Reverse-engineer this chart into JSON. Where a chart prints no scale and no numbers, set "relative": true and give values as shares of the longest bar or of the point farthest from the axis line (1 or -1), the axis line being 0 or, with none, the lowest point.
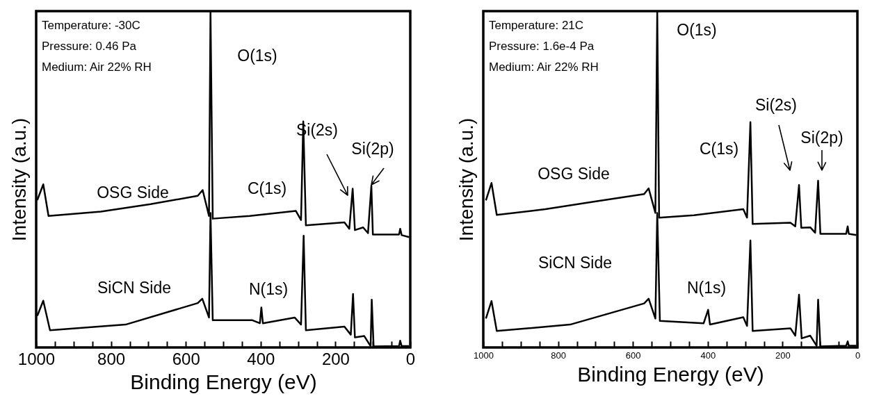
{
  "chart_data": [
    {
      "type": "line",
      "relative": true,
      "xlabel": "Binding Energy (eV)",
      "ylabel": "Intensity (a.u.)",
      "xlim": [
        1000,
        0
      ],
      "xticks": [
        1000,
        {
          "value": 950,
          "label": null
        },
        {
          "value": 900,
          "label": null
        },
        {
          "value": 850,
          "label": null
        },
        800,
        {
          "value": 750,
          "label": null
        },
        {
          "value": 700,
          "label": null
        },
        {
          "value": 650,
          "label": null
        },
        600,
        {
          "value": 550,
          "label": null
        },
        {
          "value": 500,
          "label": null
        },
        {
          "value": 450,
          "label": null
        },
        400,
        {
          "value": 350,
          "label": null
        },
        {
          "value": 300,
          "label": null
        },
        {
          "value": 250,
          "label": null
        },
        200,
        {
          "value": 150,
          "label": null
        },
        {
          "value": 100,
          "label": null
        },
        {
          "value": 50,
          "label": null
        },
        0
      ],
      "annotations": [
        "Temperature: -30C",
        "Pressure: 0.46 Pa",
        "Medium: Air 22% RH",
        "O(1s)",
        "C(1s)",
        "Si(2s)",
        "Si(2p)",
        "N(1s)"
      ],
      "series": [
        {
          "name": "OSG Side",
          "color": "#000000",
          "x": [
            997,
            981,
            967,
            827,
            694,
            568,
            555,
            538,
            534,
            528,
            429,
            306,
            292,
            286,
            279,
            176,
            163,
            154,
            148,
            126,
            113,
            104,
            100,
            30,
            27,
            23,
            3
          ],
          "values": [
            0.438,
            0.485,
            0.391,
            0.404,
            0.426,
            0.451,
            0.468,
            0.391,
            1.0,
            0.383,
            0.391,
            0.406,
            0.379,
            0.672,
            0.363,
            0.372,
            0.353,
            0.472,
            0.349,
            0.357,
            0.34,
            0.481,
            0.336,
            0.336,
            0.353,
            0.334,
            0.328
          ]
        },
        {
          "name": "SiCN Side",
          "color": "#000000",
          "x": [
            997,
            981,
            963,
            761,
            568,
            556,
            538,
            534,
            528,
            422,
            402,
            398,
            394,
            309,
            292,
            285,
            279,
            176,
            159,
            153,
            148,
            123,
            106,
            103,
            98,
            30,
            27,
            23,
            3
          ],
          "values": [
            0.094,
            0.139,
            0.051,
            0.068,
            0.132,
            0.145,
            0.089,
            0.4,
            0.081,
            0.081,
            0.072,
            0.119,
            0.072,
            0.089,
            0.068,
            0.332,
            0.051,
            0.062,
            0.038,
            0.159,
            0.03,
            0.034,
            0.004,
            0.142,
            0.003,
            0.004,
            0.02,
            0.004,
            0.004
          ]
        }
      ]
    },
    {
      "type": "line",
      "relative": true,
      "xlabel": "Binding Energy (eV)",
      "ylabel": "Intensity (a.u.)",
      "xlim": [
        1000,
        0
      ],
      "xticks": [
        1000,
        {
          "value": 950,
          "label": null
        },
        {
          "value": 900,
          "label": null
        },
        {
          "value": 850,
          "label": null
        },
        800,
        {
          "value": 750,
          "label": null
        },
        {
          "value": 700,
          "label": null
        },
        {
          "value": 650,
          "label": null
        },
        600,
        {
          "value": 550,
          "label": null
        },
        {
          "value": 500,
          "label": null
        },
        {
          "value": 450,
          "label": null
        },
        400,
        {
          "value": 350,
          "label": null
        },
        {
          "value": 300,
          "label": null
        },
        {
          "value": 250,
          "label": null
        },
        200,
        {
          "value": 150,
          "label": null
        },
        {
          "value": 100,
          "label": null
        },
        {
          "value": 50,
          "label": null
        },
        0
      ],
      "annotations": [
        "Temperature: 21C",
        "Pressure: 1.6e-4 Pa",
        "Medium: Air 22% RH",
        "O(1s)",
        "C(1s)",
        "Si(2s)",
        "Si(2p)",
        "N(1s)"
      ],
      "series": [
        {
          "name": "OSG Side",
          "color": "#000000",
          "x": [
            993,
            978,
            964,
            834,
            702,
            570,
            558,
            540,
            535,
            530,
            437,
            305,
            295,
            286,
            280,
            179,
            166,
            156,
            150,
            126,
            113,
            105,
            99,
            30,
            26,
            23,
            3
          ],
          "values": [
            0.437,
            0.489,
            0.394,
            0.411,
            0.434,
            0.456,
            0.473,
            0.4,
            1.0,
            0.386,
            0.393,
            0.411,
            0.386,
            0.67,
            0.367,
            0.371,
            0.36,
            0.483,
            0.356,
            0.357,
            0.341,
            0.496,
            0.338,
            0.338,
            0.36,
            0.338,
            0.334
          ]
        },
        {
          "name": "SiCN Side",
          "color": "#000000",
          "x": [
            993,
            978,
            964,
            768,
            570,
            558,
            540,
            535,
            528,
            411,
            399,
            394,
            305,
            295,
            286,
            280,
            179,
            166,
            156,
            149,
            126,
            109,
            105,
            99,
            30,
            26,
            23,
            3
          ],
          "values": [
            0.086,
            0.138,
            0.049,
            0.068,
            0.131,
            0.145,
            0.086,
            0.4,
            0.079,
            0.072,
            0.112,
            0.068,
            0.09,
            0.064,
            0.318,
            0.049,
            0.057,
            0.035,
            0.157,
            0.027,
            0.035,
            0.005,
            0.142,
            0.003,
            0.005,
            0.018,
            0.005,
            0.005
          ]
        }
      ]
    }
  ]
}
